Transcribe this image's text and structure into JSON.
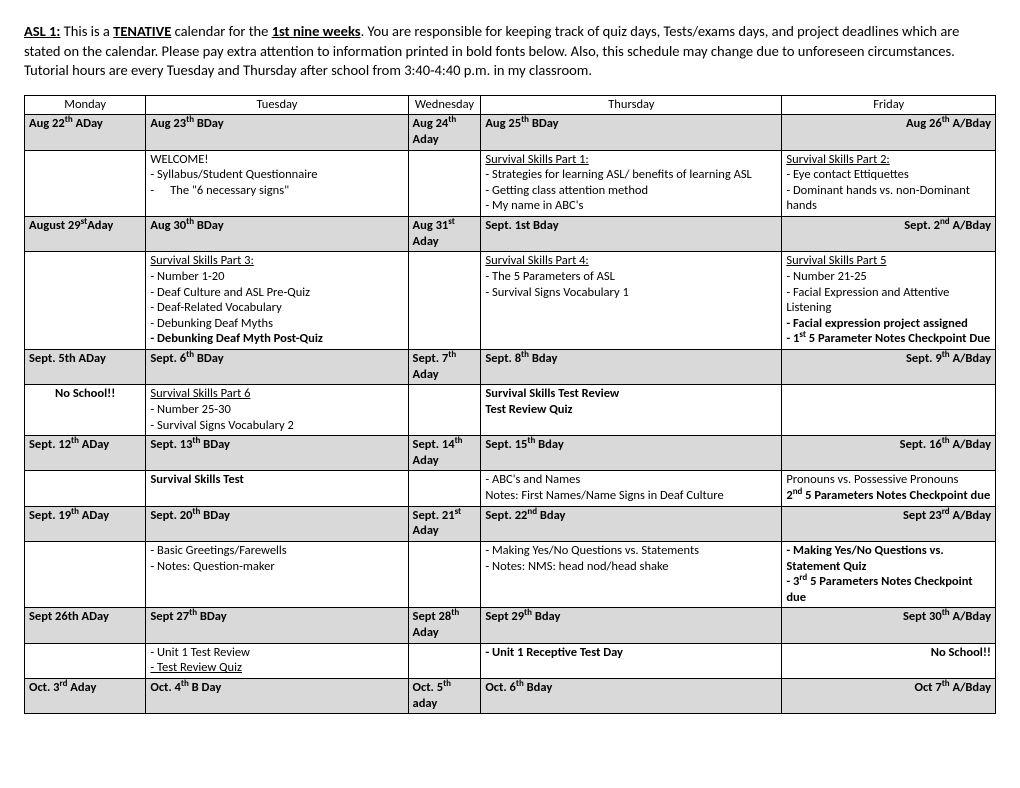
{
  "intro": {
    "prefix": "ASL 1:",
    "t1": " This is a ",
    "tentative": "TENATIVE",
    "t2": " calendar for the ",
    "period": "1st nine weeks",
    "t3": ". You are responsible for keeping track of quiz days, Tests/exams days, and project deadlines which are stated on the calendar. Please pay extra attention to information printed in bold fonts below. Also, this schedule may change due to unforeseen circumstances. Tutorial hours are every Tuesday and Thursday after school from 3:40-4:40 p.m. in my classroom."
  },
  "columns": [
    "Monday",
    "Tuesday",
    "Wednesday",
    "Thursday",
    "Friday"
  ],
  "w1": {
    "mon": {
      "pre": "Aug 22",
      "sup": "th",
      "suf": " ADay"
    },
    "tue": {
      "pre": "Aug 23",
      "sup": "th",
      "suf": " BDay"
    },
    "wed": {
      "pre": "Aug 24",
      "sup": "th",
      "suf": "",
      "line2": "Aday"
    },
    "thu": {
      "pre": "Aug 25",
      "sup": "th",
      "suf": " BDay"
    },
    "fri": {
      "pre": "Aug 26",
      "sup": "th",
      "suf": " A/Bday"
    },
    "tue_c": {
      "l1": "WELCOME!",
      "l2": "- Syllabus/Student Questionnaire",
      "l3": "The \"6 necessary signs\""
    },
    "thu_c": {
      "title": "Survival Skills Part 1:",
      "l1": "- Strategies for learning ASL/ benefits of learning ASL",
      "l2": "- Getting class attention method",
      "l3": "- My name in ABC's"
    },
    "fri_c": {
      "title": "Survival Skills Part 2:",
      "l1": "- Eye contact Ettiquettes",
      "l2": "- Dominant hands vs. non-Dominant hands"
    }
  },
  "w2": {
    "mon": {
      "pre": "August 29",
      "sup": "st",
      "suf": "Aday"
    },
    "tue": {
      "pre": "Aug 30",
      "sup": "th",
      "suf": " BDay"
    },
    "wed": {
      "pre": "Aug 31",
      "sup": "st",
      "suf": "",
      "line2": "Aday"
    },
    "thu": {
      "pre": "Sept. 1st Bday",
      "sup": "",
      "suf": ""
    },
    "fri": {
      "pre": "Sept. 2",
      "sup": "nd",
      "suf": " A/Bday"
    },
    "tue_c": {
      "title": "Survival Skills Part 3:",
      "l1": "- Number 1-20",
      "l2": "- Deaf Culture and ASL Pre-Quiz",
      "l3": "- Deaf-Related Vocabulary",
      "l4": "- Debunking Deaf Myths",
      "l5": "- Debunking Deaf Myth Post-Quiz"
    },
    "thu_c": {
      "title": "Survival Skills Part 4:",
      "l1": "- The 5 Parameters of ASL",
      "l2": "- Survival Signs Vocabulary 1"
    },
    "fri_c": {
      "title": "Survival Skills Part 5",
      "l1": "- Number 21-25",
      "l2": "- Facial Expression and Attentive Listening",
      "l3": "- Facial expression project assigned",
      "l4pre": "- 1",
      "l4sup": "st",
      "l4suf": " 5 Parameter Notes Checkpoint Due"
    }
  },
  "w3": {
    "mon": {
      "pre": "Sept. 5th ADay",
      "sup": "",
      "suf": ""
    },
    "tue": {
      "pre": "Sept. 6",
      "sup": "th",
      "suf": " BDay"
    },
    "wed": {
      "pre": "Sept. 7",
      "sup": "th",
      "suf": "",
      "line2": "Aday"
    },
    "thu": {
      "pre": "Sept. 8",
      "sup": "th",
      "suf": " Bday"
    },
    "fri": {
      "pre": "Sept. 9",
      "sup": "th",
      "suf": " A/Bday"
    },
    "mon_c": {
      "l1": "No School!!"
    },
    "tue_c": {
      "title": "Survival Skills Part 6",
      "l1": "- Number 25-30",
      "l2": "- Survival Signs Vocabulary 2"
    },
    "thu_c": {
      "l1": "Survival Skills Test Review",
      "l2": "Test Review Quiz"
    }
  },
  "w4": {
    "mon": {
      "pre": "Sept. 12",
      "sup": "th",
      "suf": " ADay"
    },
    "tue": {
      "pre": "Sept. 13",
      "sup": "th",
      "suf": " BDay"
    },
    "wed": {
      "pre": "Sept. 14",
      "sup": "th",
      "suf": "",
      "line2": "Aday"
    },
    "thu": {
      "pre": "Sept. 15",
      "sup": "th",
      "suf": " Bday"
    },
    "fri": {
      "pre": "Sept. 16",
      "sup": "th",
      "suf": " A/Bday"
    },
    "tue_c": {
      "l1": "Survival Skills Test"
    },
    "thu_c": {
      "l1": "- ABC's and Names",
      "l2": "Notes: First Names/Name Signs in Deaf Culture"
    },
    "fri_c": {
      "l1": "Pronouns vs. Possessive Pronouns",
      "l2pre": "2",
      "l2sup": "nd",
      "l2suf": " 5 Parameters Notes Checkpoint due"
    }
  },
  "w5": {
    "mon": {
      "pre": "Sept. 19",
      "sup": "th",
      "suf": " ADay"
    },
    "tue": {
      "pre": "Sept. 20",
      "sup": "th",
      "suf": " BDay"
    },
    "wed": {
      "pre": "Sept. 21",
      "sup": "st",
      "suf": "",
      "line2": "Aday"
    },
    "thu": {
      "pre": "Sept. 22",
      "sup": "nd",
      "suf": " Bday"
    },
    "fri": {
      "pre": "Sept 23",
      "sup": "rd",
      "suf": " A/Bday"
    },
    "tue_c": {
      "l1": "- Basic Greetings/Farewells",
      "l2": "- Notes: Question-maker"
    },
    "thu_c": {
      "l1": "- Making Yes/No Questions vs. Statements",
      "l2": "- Notes: NMS: head nod/head shake"
    },
    "fri_c": {
      "l1": "-  Making Yes/No Questions vs. Statement Quiz",
      "l2pre": "- 3",
      "l2sup": "rd",
      "l2suf": " 5 Parameters Notes Checkpoint due"
    }
  },
  "w6": {
    "mon": {
      "pre": "Sept 26th ADay",
      "sup": "",
      "suf": ""
    },
    "tue": {
      "pre": "Sept 27",
      "sup": "th",
      "suf": " BDay"
    },
    "wed": {
      "pre": "Sept 28",
      "sup": "th",
      "suf": "",
      "line2": "Aday"
    },
    "thu": {
      "pre": "Sept 29",
      "sup": "th",
      "suf": " Bday"
    },
    "fri": {
      "pre": "Sept 30",
      "sup": "th",
      "suf": " A/Bday"
    },
    "tue_c": {
      "l1": "- Unit 1 Test Review",
      "l2": "- Test Review Quiz"
    },
    "thu_c": {
      "l1": "- Unit 1 Receptive Test Day"
    },
    "fri_c": {
      "l1": "No School!!"
    }
  },
  "w7": {
    "mon": {
      "pre": "Oct. 3",
      "sup": "rd",
      "suf": "  Aday"
    },
    "tue": {
      "pre": "Oct. 4",
      "sup": "th",
      "suf": " B Day"
    },
    "wed": {
      "pre": "Oct. 5",
      "sup": "th",
      "suf": "",
      "line2": "aday"
    },
    "thu": {
      "pre": "Oct. 6",
      "sup": "th",
      "suf": " Bday"
    },
    "fri": {
      "pre": "Oct 7",
      "sup": "th",
      "suf": " A/Bday"
    }
  }
}
